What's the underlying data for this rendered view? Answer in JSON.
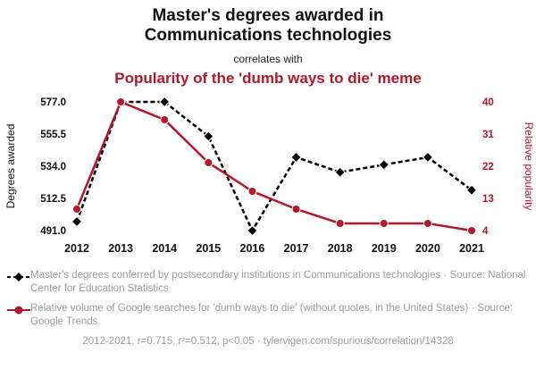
{
  "header": {
    "title_line1": "Master's degrees awarded in",
    "title_line2": "Communications technologies",
    "connector": "correlates with",
    "subtitle": "Popularity of the 'dumb ways to die' meme"
  },
  "chart_data": {
    "type": "line",
    "x": [
      "2012",
      "2013",
      "2014",
      "2015",
      "2016",
      "2017",
      "2018",
      "2019",
      "2020",
      "2021"
    ],
    "series": [
      {
        "name": "Master's degrees awarded in Communications technologies",
        "axis": "left",
        "color": "#000000",
        "marker": "diamond",
        "dashed": true,
        "values": [
          497,
          577,
          577,
          554,
          491,
          540,
          530,
          535,
          540,
          518
        ]
      },
      {
        "name": "Popularity of the 'dumb ways to die' meme",
        "axis": "right",
        "color": "#b2182b",
        "marker": "circle",
        "dashed": false,
        "values": [
          10,
          40,
          35,
          23,
          15,
          10,
          6,
          6,
          6,
          4
        ]
      }
    ],
    "left_axis": {
      "label": "Degrees awarded",
      "min": 491,
      "max": 577,
      "tick_labels": [
        "491.0",
        "512.5",
        "534.0",
        "555.5",
        "577.0"
      ]
    },
    "right_axis": {
      "label": "Relative popularity",
      "min": 4,
      "max": 40,
      "tick_labels": [
        "4",
        "13",
        "22",
        "31",
        "40"
      ]
    },
    "grid": false,
    "legend_position": "below"
  },
  "legend": {
    "items": [
      {
        "marker": "diamond-dashed",
        "color": "#000000",
        "text": "Master's degrees conferred by postsecondary institutions in Communications technologies · Source: National Center for Education Statistics"
      },
      {
        "marker": "circle-solid",
        "color": "#b2182b",
        "text": "Relative volume of Google searches for 'dumb ways to die' (without quotes, in the United States) · Source: Google Trends"
      }
    ]
  },
  "footer": {
    "text": "2012-2021, r=0.715, r²=0.512, p<0.05 · tylervigen.com/spurious/correlation/14328"
  },
  "colors": {
    "accent": "#b2182b",
    "series_black": "#000000",
    "legend_gray": "#9b9b9b"
  }
}
